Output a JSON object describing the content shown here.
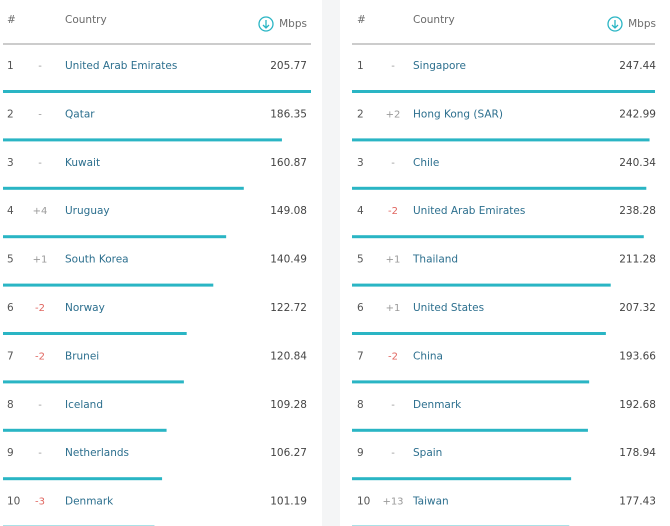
{
  "tables": [
    {
      "header": {
        "rank": "#",
        "country": "Country",
        "speed": "Mbps"
      },
      "rows": [
        {
          "rank": 1,
          "change": "-",
          "country": "United Arab Emirates",
          "speed": 205.77
        },
        {
          "rank": 2,
          "change": "-",
          "country": "Qatar",
          "speed": 186.35
        },
        {
          "rank": 3,
          "change": "-",
          "country": "Kuwait",
          "speed": 160.87
        },
        {
          "rank": 4,
          "change": "+4",
          "country": "Uruguay",
          "speed": 149.08
        },
        {
          "rank": 5,
          "change": "+1",
          "country": "South Korea",
          "speed": 140.49
        },
        {
          "rank": 6,
          "change": "-2",
          "country": "Norway",
          "speed": 122.72
        },
        {
          "rank": 7,
          "change": "-2",
          "country": "Brunei",
          "speed": 120.84
        },
        {
          "rank": 8,
          "change": "-",
          "country": "Iceland",
          "speed": 109.28
        },
        {
          "rank": 9,
          "change": "-",
          "country": "Netherlands",
          "speed": 106.27
        },
        {
          "rank": 10,
          "change": "-3",
          "country": "Denmark",
          "speed": 101.19
        }
      ]
    },
    {
      "header": {
        "rank": "#",
        "country": "Country",
        "speed": "Mbps"
      },
      "rows": [
        {
          "rank": 1,
          "change": "-",
          "country": "Singapore",
          "speed": 247.44
        },
        {
          "rank": 2,
          "change": "+2",
          "country": "Hong Kong (SAR)",
          "speed": 242.99
        },
        {
          "rank": 3,
          "change": "-",
          "country": "Chile",
          "speed": 240.34
        },
        {
          "rank": 4,
          "change": "-2",
          "country": "United Arab Emirates",
          "speed": 238.28
        },
        {
          "rank": 5,
          "change": "+1",
          "country": "Thailand",
          "speed": 211.28
        },
        {
          "rank": 6,
          "change": "+1",
          "country": "United States",
          "speed": 207.32
        },
        {
          "rank": 7,
          "change": "-2",
          "country": "China",
          "speed": 193.66
        },
        {
          "rank": 8,
          "change": "-",
          "country": "Denmark",
          "speed": 192.68
        },
        {
          "rank": 9,
          "change": "-",
          "country": "Spain",
          "speed": 178.94
        },
        {
          "rank": 10,
          "change": "+13",
          "country": "Taiwan",
          "speed": 177.43
        }
      ]
    }
  ]
}
